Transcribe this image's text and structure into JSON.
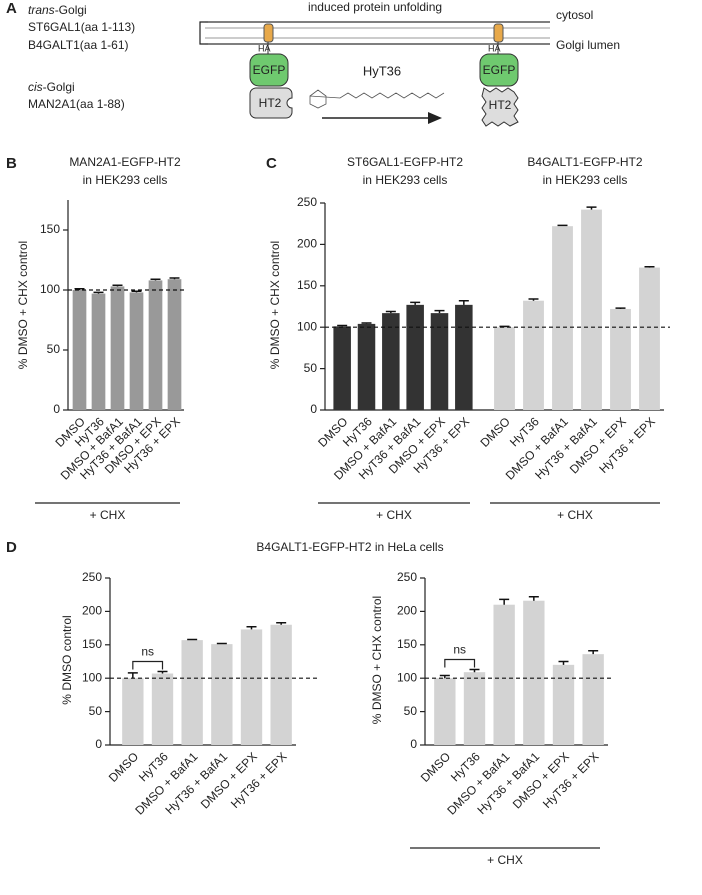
{
  "figure": {
    "panels": [
      "A",
      "B",
      "C",
      "D"
    ],
    "panel_d_title": "B4GALT1-EGFP-HT2 in HeLa cells"
  },
  "diagram": {
    "trans_label": "trans",
    "trans_suffix": "-Golgi",
    "st6": "ST6GAL1(aa 1-113)",
    "b4": "B4GALT1(aa 1-61)",
    "unfolding": "induced protein unfolding",
    "cytosol": "cytosol",
    "lumen": "Golgi lumen",
    "ha": "HA",
    "egfp": "EGFP",
    "ht2": "HT2",
    "cis_label": "cis",
    "cis_suffix": "-Golgi",
    "man": "MAN2A1(aa 1-88)",
    "hyt": "HyT36"
  },
  "chart_data": [
    {
      "type": "bar",
      "title": [
        "MAN2A1-EGFP-HT2",
        "in HEK293 cells"
      ],
      "ylabel": "% DMSO + CHX control",
      "categories": [
        "DMSO",
        "HyT36",
        "DMSO + BafA1",
        "HyT36 + BafA1",
        "DMSO + EPX",
        "HyT36 + EPX"
      ],
      "series": [
        {
          "color": "#999999",
          "values": [
            100,
            97,
            103,
            98,
            108,
            109
          ],
          "errors": [
            1,
            1,
            1,
            1,
            1,
            1
          ],
          "bracket_label": "+ CHX"
        }
      ],
      "ylim": [
        0,
        175
      ],
      "yticks": [
        0,
        50,
        100,
        150
      ],
      "ref_line": 100
    },
    {
      "type": "bar",
      "ylabel": "% DMSO + CHX control",
      "categories": [
        "DMSO",
        "HyT36",
        "DMSO + BafA1",
        "HyT36 + BafA1",
        "DMSO + EPX",
        "HyT36 + EPX"
      ],
      "series": [
        {
          "title": [
            "ST6GAL1-EGFP-HT2",
            "in HEK293 cells"
          ],
          "color": "#333333",
          "values": [
            101,
            104,
            117,
            127,
            117,
            127
          ],
          "errors": [
            1,
            1,
            2,
            3,
            3,
            5
          ],
          "bracket_label": "+ CHX"
        },
        {
          "title": [
            "B4GALT1-EGFP-HT2",
            "in HEK293 cells"
          ],
          "color": "#d3d3d3",
          "values": [
            100,
            132,
            222,
            242,
            122,
            172
          ],
          "errors": [
            1,
            2,
            1,
            3,
            1,
            1
          ],
          "bracket_label": "+ CHX"
        }
      ],
      "ylim": [
        0,
        250
      ],
      "yticks": [
        0,
        50,
        100,
        150,
        200,
        250
      ],
      "ref_line": 100
    },
    {
      "type": "bar",
      "ylabel": "% DMSO control",
      "categories": [
        "DMSO",
        "HyT36",
        "DMSO + BafA1",
        "HyT36 + BafA1",
        "DMSO + EPX",
        "HyT36 + EPX"
      ],
      "series": [
        {
          "color": "#d3d3d3",
          "values": [
            100,
            107,
            157,
            151,
            173,
            180
          ],
          "errors": [
            8,
            3,
            1,
            1,
            4,
            3
          ]
        }
      ],
      "ylim": [
        0,
        250
      ],
      "yticks": [
        0,
        50,
        100,
        150,
        200,
        250
      ],
      "ref_line": 100,
      "annotation": "ns"
    },
    {
      "type": "bar",
      "ylabel": "% DMSO + CHX control",
      "categories": [
        "DMSO",
        "HyT36",
        "DMSO + BafA1",
        "HyT36 + BafA1",
        "DMSO + EPX",
        "HyT36 + EPX"
      ],
      "series": [
        {
          "color": "#d3d3d3",
          "values": [
            100,
            109,
            210,
            216,
            120,
            136
          ],
          "errors": [
            4,
            4,
            8,
            6,
            5,
            5
          ],
          "bracket_label": "+ CHX"
        }
      ],
      "ylim": [
        0,
        250
      ],
      "yticks": [
        0,
        50,
        100,
        150,
        200,
        250
      ],
      "ref_line": 100,
      "annotation": "ns"
    }
  ]
}
